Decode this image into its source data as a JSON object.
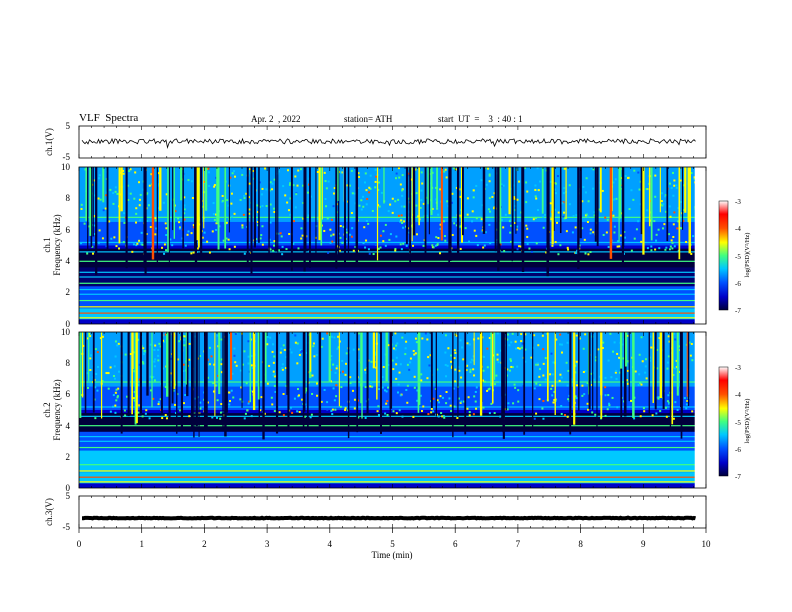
{
  "header": {
    "title": "VLF  Spectra",
    "date": "Apr. 2  , 2022",
    "station": "station= ATH",
    "start": "start  UT  =    3  : 40 : 1"
  },
  "colors": {
    "waveform": "#000000",
    "background": "#ffffff",
    "colormap": [
      "#00003c",
      "#0000c8",
      "#0050ff",
      "#00c8ff",
      "#40ff80",
      "#ffff00",
      "#ff5000",
      "#ff0000",
      "#ffffff"
    ]
  },
  "chart_data": [
    {
      "type": "line",
      "panel": "ch1-waveform",
      "ylabel": "ch.1(V)",
      "ylim": [
        -5,
        5
      ],
      "y_ticks": [
        "5",
        "-5"
      ],
      "xlim": [
        0,
        10
      ],
      "series": [
        {
          "name": "ch.1",
          "mean": 0.2,
          "amplitude": 0.8
        }
      ]
    },
    {
      "type": "heatmap",
      "panel": "ch1-spectrogram",
      "ylabel_line1": "ch.1",
      "ylabel_line2": "Frequency  (kHz)",
      "ylim": [
        0,
        10
      ],
      "y_ticks": [
        "0",
        "2",
        "4",
        "6",
        "8",
        "10"
      ],
      "xlim": [
        0,
        10
      ],
      "colorbar": {
        "label": "log(PSD)(V²/Hz)",
        "range": [
          -7,
          -3
        ],
        "ticks": [
          "-3",
          "-4",
          "-5",
          "-6",
          "-7"
        ]
      }
    },
    {
      "type": "heatmap",
      "panel": "ch2-spectrogram",
      "ylabel_line1": "ch.2",
      "ylabel_line2": "Frequency  (kHz)",
      "ylim": [
        0,
        10
      ],
      "y_ticks": [
        "0",
        "2",
        "4",
        "6",
        "8",
        "10"
      ],
      "xlim": [
        0,
        10
      ],
      "colorbar": {
        "label": "log(PSD)(V²/Hz)",
        "range": [
          -7,
          -3
        ],
        "ticks": [
          "-3",
          "-4",
          "-5",
          "-6",
          "-7"
        ]
      }
    },
    {
      "type": "line",
      "panel": "ch3-waveform",
      "ylabel": "ch.3(V)",
      "ylim": [
        -5,
        5
      ],
      "y_ticks": [
        "5",
        "-5"
      ],
      "xlim": [
        0,
        10
      ],
      "series": [
        {
          "name": "ch.3",
          "mean": -1.9,
          "amplitude": 0.1
        }
      ]
    }
  ],
  "x_axis": {
    "label": "Time  (min)",
    "range": [
      0,
      10
    ],
    "ticks": [
      "0",
      "1",
      "2",
      "3",
      "4",
      "5",
      "6",
      "7",
      "8",
      "9",
      "10"
    ]
  }
}
